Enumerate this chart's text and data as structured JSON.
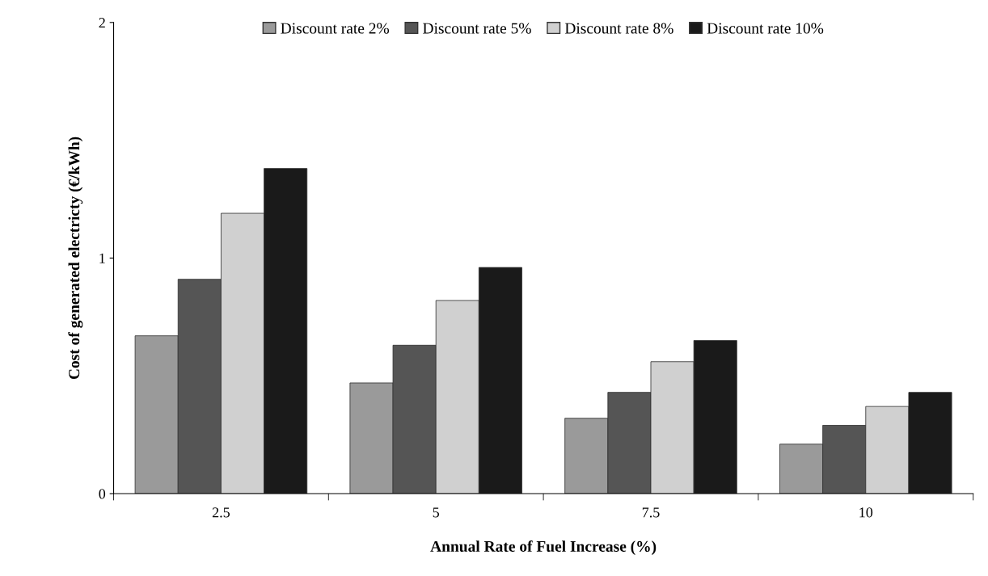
{
  "chart_data": {
    "type": "bar",
    "xlabel": "Annual Rate of Fuel Increase (%)",
    "ylabel": "Cost of generated electricty (€/kWh)",
    "categories": [
      "2.5",
      "5",
      "7.5",
      "10"
    ],
    "series": [
      {
        "name": "Discount rate 2%",
        "color": "#9a9a9a",
        "values": [
          0.67,
          0.47,
          0.32,
          0.21
        ]
      },
      {
        "name": "Discount rate 5%",
        "color": "#555555",
        "values": [
          0.91,
          0.63,
          0.43,
          0.29
        ]
      },
      {
        "name": "Discount rate 8%",
        "color": "#d0d0d0",
        "values": [
          1.19,
          0.82,
          0.56,
          0.37
        ]
      },
      {
        "name": "Discount rate 10%",
        "color": "#1a1a1a",
        "values": [
          1.38,
          0.96,
          0.65,
          0.43
        ]
      }
    ],
    "ylim": [
      0,
      2
    ],
    "yticks": [
      0,
      1,
      2
    ],
    "grid": false,
    "legend": "top"
  }
}
